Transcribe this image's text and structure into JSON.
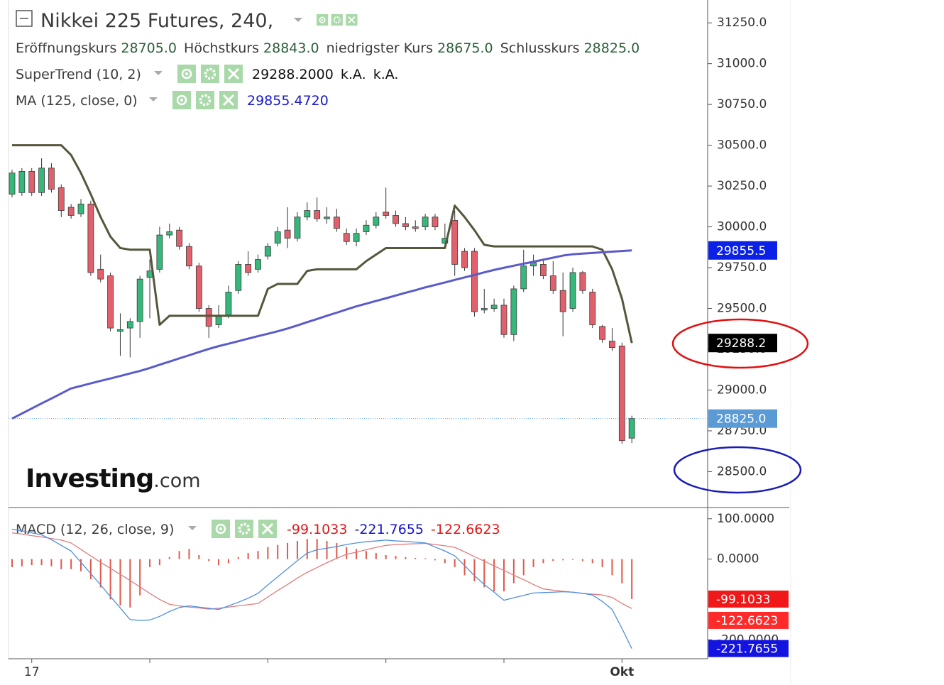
{
  "header": {
    "title": "Nikkei 225 Futures, 240,",
    "ohlc": [
      {
        "label": "Eröffnungskurs",
        "value": "28705.0"
      },
      {
        "label": "Höchstkurs",
        "value": "28843.0"
      },
      {
        "label": "niedrigster Kurs",
        "value": "28675.0"
      },
      {
        "label": "Schlusskurs",
        "value": "28825.0"
      }
    ]
  },
  "logo": {
    "main": "Investing",
    "suffix": ".com"
  },
  "chart_data": [
    {
      "type": "candlestick",
      "categories": [
        null,
        null,
        "17",
        null,
        null,
        null,
        null,
        null,
        null,
        null,
        null,
        null,
        null,
        null,
        null,
        null,
        null,
        null,
        null,
        null,
        null,
        null,
        null,
        null,
        null,
        null,
        null,
        null,
        null,
        null,
        null,
        null,
        null,
        null,
        null,
        null,
        null,
        null,
        null,
        null,
        null,
        null,
        null,
        null,
        null,
        null,
        null,
        null,
        null,
        null,
        null,
        null,
        null,
        null,
        null,
        null,
        null,
        null,
        null,
        null,
        null,
        null,
        "Okt",
        null
      ],
      "xticks": [
        2,
        14,
        26,
        38,
        50,
        62
      ],
      "open": [
        30200,
        30210,
        30340,
        30210,
        30360,
        30240,
        30120,
        30080,
        30140,
        29740,
        29700,
        29360,
        29380,
        29420,
        29690,
        29740,
        29950,
        29980,
        29880,
        29760,
        29500,
        29400,
        29460,
        29610,
        29770,
        29740,
        29820,
        29900,
        29980,
        29930,
        30060,
        30100,
        30050,
        30060,
        29960,
        29910,
        29970,
        30010,
        30090,
        30070,
        30020,
        30000,
        30000,
        30060,
        29900,
        30040,
        29850,
        29850,
        29490,
        29500,
        29520,
        29340,
        29620,
        29760,
        29770,
        29700,
        29610,
        29500,
        29720,
        29600,
        29390,
        29300,
        29270,
        28705
      ],
      "high": [
        30350,
        30360,
        30360,
        30420,
        30390,
        30260,
        30140,
        30170,
        30160,
        29830,
        29720,
        29470,
        29440,
        29700,
        29800,
        30000,
        30020,
        30000,
        29900,
        29780,
        29520,
        29520,
        29640,
        29790,
        29850,
        29830,
        29900,
        30000,
        30120,
        30090,
        30150,
        30180,
        30120,
        30110,
        29990,
        29990,
        30040,
        30090,
        30240,
        30100,
        30060,
        30040,
        30080,
        30080,
        30020,
        30100,
        29870,
        29870,
        29620,
        29560,
        29560,
        29640,
        29860,
        29830,
        29800,
        29790,
        29720,
        29750,
        29730,
        29620,
        29400,
        29380,
        29290,
        28843
      ],
      "low": [
        30180,
        30190,
        30190,
        30190,
        30210,
        30060,
        30050,
        30060,
        29700,
        29660,
        29360,
        29210,
        29200,
        29320,
        29440,
        29720,
        29930,
        29860,
        29740,
        29480,
        29320,
        29380,
        29440,
        29590,
        29700,
        29720,
        29800,
        29880,
        29870,
        29910,
        30040,
        30030,
        30020,
        29970,
        29890,
        29880,
        29950,
        29990,
        30050,
        30000,
        29980,
        29970,
        29980,
        29980,
        29880,
        29700,
        29730,
        29450,
        29470,
        29480,
        29320,
        29300,
        29600,
        29700,
        29680,
        29590,
        29330,
        29480,
        29590,
        29380,
        29290,
        29240,
        28670,
        28675
      ],
      "close": [
        30330,
        30340,
        30210,
        30360,
        30230,
        30100,
        30070,
        30140,
        29720,
        29680,
        29380,
        29370,
        29420,
        29680,
        29730,
        29950,
        29970,
        29880,
        29760,
        29500,
        29390,
        29450,
        29600,
        29770,
        29720,
        29800,
        29880,
        29970,
        29930,
        30060,
        30100,
        30050,
        30060,
        29990,
        29910,
        29960,
        30010,
        30060,
        30070,
        30020,
        30000,
        29990,
        30060,
        30000,
        29930,
        29770,
        29750,
        29480,
        29500,
        29520,
        29340,
        29620,
        29760,
        29780,
        29700,
        29610,
        29480,
        29720,
        29610,
        29400,
        29310,
        29260,
        28690,
        28825
      ],
      "up_color": "#35b87a",
      "down_color": "#e0606c",
      "lines": [
        {
          "name": "SuperTrend (10, 2)",
          "color": "#55563c",
          "legend_values": [
            "29288.2000",
            "k.A.",
            "k.A."
          ],
          "values": [
            30500,
            30500,
            30500,
            30500,
            30500,
            30500,
            30440,
            30330,
            30200,
            30060,
            29940,
            29870,
            29860,
            29860,
            29860,
            29400,
            29455,
            29455,
            29455,
            29455,
            29455,
            29455,
            29455,
            29455,
            29455,
            29455,
            29620,
            29650,
            29650,
            29650,
            29730,
            29740,
            29740,
            29740,
            29740,
            29740,
            29790,
            29830,
            29870,
            29870,
            29870,
            29870,
            29870,
            29870,
            29870,
            30130,
            30060,
            29980,
            29890,
            29880,
            29880,
            29880,
            29880,
            29880,
            29880,
            29880,
            29880,
            29880,
            29880,
            29880,
            29860,
            29740,
            29560,
            29288.2
          ]
        },
        {
          "name": "MA (125, close, 0)",
          "color": "#5a5acc",
          "legend_values": [
            "29855.4720"
          ],
          "values": [
            28825,
            28856,
            28887,
            28918,
            28948,
            28979,
            29010,
            29025,
            29041,
            29056,
            29071,
            29086,
            29102,
            29117,
            29135,
            29155,
            29174,
            29194,
            29213,
            29233,
            29252,
            29269,
            29284,
            29299,
            29315,
            29330,
            29345,
            29360,
            29377,
            29396,
            29416,
            29435,
            29455,
            29474,
            29494,
            29513,
            29529,
            29546,
            29562,
            29579,
            29596,
            29612,
            29629,
            29644,
            29659,
            29675,
            29690,
            29705,
            29721,
            29736,
            29749,
            29762,
            29774,
            29786,
            29799,
            29811,
            29824,
            29832,
            29836,
            29840,
            29844,
            29848,
            29852,
            29855.5
          ]
        }
      ],
      "price_labels": [
        {
          "value": 29855.5,
          "label": "29855.5",
          "color": "#0b22e6"
        },
        {
          "value": 29288.2,
          "label": "29288.2",
          "color": "#000000"
        },
        {
          "value": 28825,
          "label": "28825.0",
          "color": "#5b9bd5",
          "line": "dotted"
        }
      ],
      "ylim": [
        28280,
        31390
      ],
      "yticks": [
        {
          "value": 28500,
          "label": "28500.0"
        },
        {
          "value": 28750,
          "label": "28750.0"
        },
        {
          "value": 29000,
          "label": "29000.0"
        },
        {
          "value": 29250,
          "label": "29250.0"
        },
        {
          "value": 29500,
          "label": "29500.0"
        },
        {
          "value": 29750,
          "label": "29750.0"
        },
        {
          "value": 30000,
          "label": "30000.0"
        },
        {
          "value": 30250,
          "label": "30250.0"
        },
        {
          "value": 30500,
          "label": "30500.0"
        },
        {
          "value": 30750,
          "label": "30750.0"
        },
        {
          "value": 31000,
          "label": "31000.0"
        },
        {
          "value": 31250,
          "label": "31250.0"
        }
      ],
      "grid": false
    },
    {
      "type": "macd",
      "name": "MACD (12, 26, close, 9)",
      "histogram": {
        "color": "#e0584a",
        "legend_value": "-99.1033",
        "values": [
          -20,
          -18,
          -15,
          -15,
          -18,
          -25,
          -25,
          -30,
          -50,
          -70,
          -100,
          -115,
          -120,
          -90,
          -20,
          -15,
          5,
          20,
          25,
          10,
          -5,
          -15,
          -10,
          5,
          15,
          20,
          30,
          35,
          40,
          45,
          50,
          50,
          45,
          40,
          30,
          25,
          20,
          15,
          10,
          8,
          5,
          3,
          2,
          -3,
          -10,
          -20,
          -40,
          -55,
          -70,
          -80,
          -80,
          -60,
          -40,
          -20,
          -10,
          -5,
          -3,
          -2,
          -5,
          -10,
          -20,
          -40,
          -60,
          -99.1033
        ]
      },
      "macd": {
        "color": "#4f8fdc",
        "legend_value": "-221.7655",
        "values": [
          74,
          70,
          65,
          60,
          48,
          34,
          20,
          -8,
          -36,
          -64,
          -93,
          -121,
          -150,
          -152,
          -151,
          -142,
          -130,
          -120,
          -116,
          -119,
          -122,
          -125,
          -116,
          -107,
          -97,
          -85,
          -64,
          -44,
          -24,
          -4,
          15,
          23,
          27,
          31,
          36,
          40,
          43,
          45,
          47,
          45,
          44,
          42,
          40,
          30,
          20,
          8,
          -16,
          -41,
          -63,
          -82,
          -102,
          -96,
          -90,
          -84,
          -83,
          -82,
          -81,
          -82,
          -85,
          -89,
          -105,
          -125,
          -172,
          -221.7655
        ]
      },
      "signal": {
        "color": "#e07c7c",
        "legend_value": "-122.6623",
        "values": [
          65,
          62,
          58,
          55,
          51,
          47,
          40,
          24,
          8,
          -8,
          -23,
          -38,
          -53,
          -69,
          -85,
          -100,
          -112,
          -116,
          -119,
          -121,
          -124,
          -122,
          -119,
          -116,
          -113,
          -110,
          -94,
          -78,
          -63,
          -47,
          -33,
          -21,
          -9,
          2,
          12,
          17,
          23,
          29,
          34,
          36,
          37,
          38,
          39,
          36,
          33,
          29,
          18,
          6,
          -5,
          -17,
          -28,
          -40,
          -51,
          -63,
          -74,
          -77,
          -80,
          -82,
          -85,
          -87,
          -89,
          -95,
          -110,
          -122.6623
        ]
      },
      "value_badges": [
        {
          "value": -99.1033,
          "label": "-99.1033",
          "color": "#f01818"
        },
        {
          "value": -122.6623,
          "label": "-122.6623",
          "color": "#ff2a2a"
        },
        {
          "value": -221.7655,
          "label": "-221.7655",
          "color": "#1414e0"
        }
      ],
      "ylim": [
        -247,
        126
      ],
      "yticks": [
        {
          "value": 100,
          "label": "100.0000"
        },
        {
          "value": 0,
          "label": "0.0000"
        },
        {
          "value": -200,
          "label": "-200.0000"
        }
      ]
    }
  ]
}
